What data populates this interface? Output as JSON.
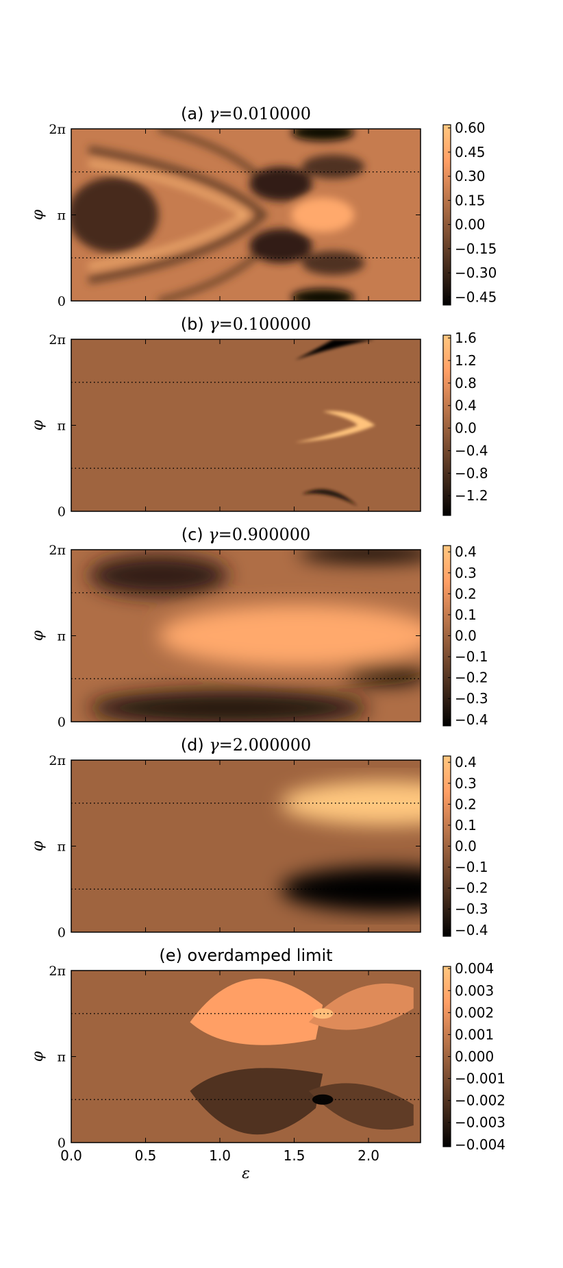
{
  "chart_data": [
    {
      "type": "heatmap",
      "title": "(a) γ=0.010000",
      "title_prefix": "(a)",
      "title_symbol": "γ",
      "title_value": "=0.010000",
      "xlabel": "",
      "ylabel": "φ",
      "xlim": [
        0,
        2.35
      ],
      "ylim": [
        0,
        6.2832
      ],
      "y_ticks": [
        0,
        3.1416,
        6.2832
      ],
      "y_tick_labels": [
        "0",
        "π",
        "2π"
      ],
      "x_ticks": [
        0,
        0.5,
        1.0,
        1.5,
        2.0
      ],
      "x_tick_labels": [],
      "dotted_lines_y": [
        1.5708,
        4.7124
      ],
      "colorbar_range": [
        -0.5,
        0.62
      ],
      "colorbar_ticks": [
        0.6,
        0.45,
        0.3,
        0.15,
        0.0,
        -0.15,
        -0.3,
        -0.45
      ],
      "colorbar_tick_labels": [
        "0.60",
        "0.45",
        "0.30",
        "0.15",
        "0.00",
        "−0.15",
        "−0.30",
        "−0.45"
      ],
      "colormap": "copper",
      "legend": "colorbar-right"
    },
    {
      "type": "heatmap",
      "title": "(b) γ=0.100000",
      "title_prefix": "(b)",
      "title_symbol": "γ",
      "title_value": "=0.100000",
      "xlabel": "",
      "ylabel": "φ",
      "xlim": [
        0,
        2.35
      ],
      "ylim": [
        0,
        6.2832
      ],
      "y_ticks": [
        0,
        3.1416,
        6.2832
      ],
      "y_tick_labels": [
        "0",
        "π",
        "2π"
      ],
      "x_ticks": [
        0,
        0.5,
        1.0,
        1.5,
        2.0
      ],
      "x_tick_labels": [],
      "dotted_lines_y": [
        1.5708,
        4.7124
      ],
      "colorbar_range": [
        -1.55,
        1.65
      ],
      "colorbar_ticks": [
        1.6,
        1.2,
        0.8,
        0.4,
        0.0,
        -0.4,
        -0.8,
        -1.2
      ],
      "colorbar_tick_labels": [
        "1.6",
        "1.2",
        "0.8",
        "0.4",
        "0.0",
        "−0.4",
        "−0.8",
        "−1.2"
      ],
      "colormap": "copper",
      "legend": "colorbar-right"
    },
    {
      "type": "heatmap",
      "title": "(c) γ=0.900000",
      "title_prefix": "(c)",
      "title_symbol": "γ",
      "title_value": "=0.900000",
      "xlabel": "",
      "ylabel": "φ",
      "xlim": [
        0,
        2.35
      ],
      "ylim": [
        0,
        6.2832
      ],
      "y_ticks": [
        0,
        3.1416,
        6.2832
      ],
      "y_tick_labels": [
        "0",
        "π",
        "2π"
      ],
      "x_ticks": [
        0,
        0.5,
        1.0,
        1.5,
        2.0
      ],
      "x_tick_labels": [],
      "dotted_lines_y": [
        1.5708,
        4.7124
      ],
      "colorbar_range": [
        -0.43,
        0.43
      ],
      "colorbar_ticks": [
        0.4,
        0.3,
        0.2,
        0.1,
        0.0,
        -0.1,
        -0.2,
        -0.3,
        -0.4
      ],
      "colorbar_tick_labels": [
        "0.4",
        "0.3",
        "0.2",
        "0.1",
        "0.0",
        "−0.1",
        "−0.2",
        "−0.3",
        "−0.4"
      ],
      "colormap": "copper",
      "legend": "colorbar-right"
    },
    {
      "type": "heatmap",
      "title": "(d) γ=2.000000",
      "title_prefix": "(d)",
      "title_symbol": "γ",
      "title_value": "=2.000000",
      "xlabel": "",
      "ylabel": "φ",
      "xlim": [
        0,
        2.35
      ],
      "ylim": [
        0,
        6.2832
      ],
      "y_ticks": [
        0,
        3.1416,
        6.2832
      ],
      "y_tick_labels": [
        "0",
        "π",
        "2π"
      ],
      "x_ticks": [
        0,
        0.5,
        1.0,
        1.5,
        2.0
      ],
      "x_tick_labels": [],
      "dotted_lines_y": [
        1.5708,
        4.7124
      ],
      "colorbar_range": [
        -0.43,
        0.43
      ],
      "colorbar_ticks": [
        0.4,
        0.3,
        0.2,
        0.1,
        0.0,
        -0.1,
        -0.2,
        -0.3,
        -0.4
      ],
      "colorbar_tick_labels": [
        "0.4",
        "0.3",
        "0.2",
        "0.1",
        "0.0",
        "−0.1",
        "−0.2",
        "−0.3",
        "−0.4"
      ],
      "colormap": "copper",
      "legend": "colorbar-right"
    },
    {
      "type": "heatmap",
      "title": "(e) overdamped limit",
      "title_prefix": "(e)",
      "title_symbol": "",
      "title_value": "overdamped limit",
      "xlabel": "ε",
      "ylabel": "φ",
      "xlim": [
        0,
        2.35
      ],
      "ylim": [
        0,
        6.2832
      ],
      "y_ticks": [
        0,
        3.1416,
        6.2832
      ],
      "y_tick_labels": [
        "0",
        "π",
        "2π"
      ],
      "x_ticks": [
        0,
        0.5,
        1.0,
        1.5,
        2.0
      ],
      "x_tick_labels": [
        "0.0",
        "0.5",
        "1.0",
        "1.5",
        "2.0"
      ],
      "dotted_lines_y": [
        1.5708,
        4.7124
      ],
      "colorbar_range": [
        -0.0041,
        0.0041
      ],
      "colorbar_ticks": [
        0.004,
        0.003,
        0.002,
        0.001,
        0.0,
        -0.001,
        -0.002,
        -0.003,
        -0.004
      ],
      "colorbar_tick_labels": [
        "0.004",
        "0.003",
        "0.002",
        "0.001",
        "0.000",
        "−0.001",
        "−0.002",
        "−0.003",
        "−0.004"
      ],
      "colormap": "copper",
      "legend": "colorbar-right"
    }
  ]
}
